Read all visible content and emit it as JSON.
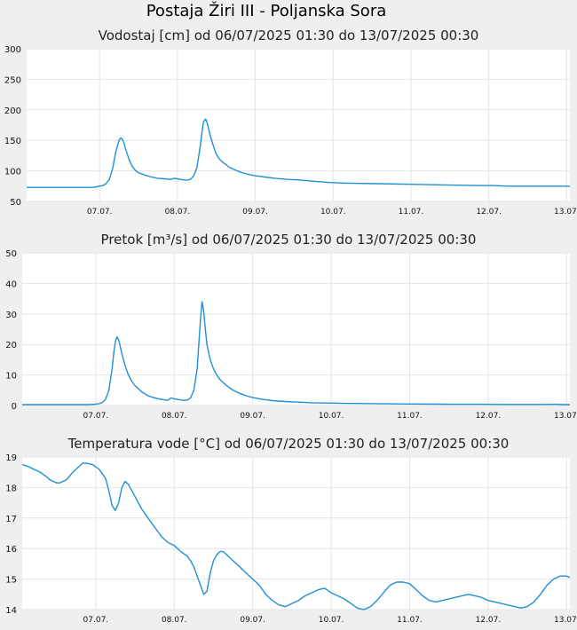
{
  "page": {
    "title": "Postaja Žiri III - Poljanska Sora"
  },
  "style": {
    "line_color": "#1f8fd6",
    "plot_bg": "#ffffff",
    "grid_color": "#e4e4e4",
    "page_bg": "#efefef"
  },
  "chart_data": [
    {
      "type": "line",
      "title": "Vodostaj [cm] od 06/07/2025 01:30 do 13/07/2025 00:30",
      "xlim": [
        1.5,
        169.0
      ],
      "ylim": [
        50,
        300
      ],
      "yticks": [
        "50",
        "100",
        "150",
        "200",
        "250",
        "300"
      ],
      "ytick_values": [
        50,
        100,
        150,
        200,
        250,
        300
      ],
      "xticks": [
        "07.07.",
        "08.07.",
        "09.07.",
        "10.07.",
        "11.07.",
        "12.07.",
        "13.07."
      ],
      "xtick_hours": [
        24,
        48,
        72,
        96,
        120,
        144,
        168
      ],
      "grid": true,
      "series": [
        {
          "x": [
            1.5,
            3,
            6,
            10,
            14,
            18,
            20,
            22,
            23,
            24,
            25,
            26,
            27,
            28,
            29,
            30,
            30.5,
            31,
            31.5,
            32,
            33,
            34,
            35,
            36,
            38,
            40,
            42,
            44,
            46,
            47,
            48,
            49,
            50,
            51,
            52,
            53,
            54,
            55,
            56,
            56.7,
            57.3,
            58,
            59,
            60,
            61,
            62,
            64,
            66,
            68,
            70,
            72,
            75,
            78,
            82,
            86,
            90,
            95,
            100,
            110,
            120,
            130,
            140,
            145,
            150,
            155,
            160,
            165,
            169
          ],
          "y": [
            73,
            73,
            73,
            73,
            73,
            73,
            73,
            73,
            74,
            75,
            76,
            79,
            86,
            103,
            132,
            150,
            154,
            152,
            146,
            136,
            120,
            108,
            101,
            97,
            93,
            90,
            88,
            87,
            86,
            88,
            87,
            86,
            85,
            85,
            86,
            92,
            105,
            140,
            180,
            185,
            176,
            160,
            142,
            127,
            119,
            114,
            106,
            101,
            97,
            94,
            92,
            90,
            88,
            86,
            85,
            83,
            81,
            80,
            79,
            78,
            77,
            76,
            76,
            75,
            75,
            75,
            75,
            75
          ]
        }
      ]
    },
    {
      "type": "line",
      "title": "Pretok [m³/s] od 06/07/2025 01:30 do 13/07/2025 00:30",
      "xlim": [
        1.5,
        169.0
      ],
      "ylim": [
        0,
        50
      ],
      "yticks": [
        "0",
        "10",
        "20",
        "30",
        "40",
        "50"
      ],
      "ytick_values": [
        0,
        10,
        20,
        30,
        40,
        50
      ],
      "xticks": [
        "07.07.",
        "08.07.",
        "09.07.",
        "10.07.",
        "11.07.",
        "12.07.",
        "13.07."
      ],
      "xtick_hours": [
        24,
        48,
        72,
        96,
        120,
        144,
        168
      ],
      "grid": true,
      "series": [
        {
          "x": [
            1.5,
            5,
            10,
            15,
            20,
            22,
            24,
            25,
            26,
            27,
            28,
            29,
            29.5,
            30,
            30.5,
            31,
            32,
            33,
            34,
            35,
            36,
            38,
            40,
            42,
            44,
            46,
            47,
            48,
            49,
            50,
            51,
            52,
            53,
            54,
            55,
            56,
            56.5,
            57,
            57.5,
            58,
            59,
            60,
            61,
            62,
            64,
            66,
            68,
            70,
            72,
            75,
            78,
            82,
            86,
            90,
            95,
            100,
            110,
            120,
            130,
            140,
            150,
            160,
            165,
            167,
            169
          ],
          "y": [
            0.3,
            0.3,
            0.3,
            0.3,
            0.3,
            0.3,
            0.4,
            0.6,
            1.0,
            2.0,
            5.0,
            12.0,
            17.0,
            21.0,
            22.5,
            21.5,
            17.0,
            13.0,
            10.0,
            8.0,
            6.5,
            4.5,
            3.2,
            2.5,
            2.0,
            1.7,
            2.5,
            2.2,
            2.0,
            1.8,
            1.7,
            1.8,
            2.5,
            5.0,
            12.0,
            28.0,
            34.0,
            31.0,
            25.0,
            20.0,
            15.0,
            12.0,
            10.0,
            8.5,
            6.5,
            5.0,
            4.0,
            3.2,
            2.6,
            2.0,
            1.6,
            1.3,
            1.1,
            0.9,
            0.8,
            0.7,
            0.6,
            0.5,
            0.45,
            0.4,
            0.35,
            0.35,
            0.4,
            0.3,
            0.3
          ]
        }
      ]
    },
    {
      "type": "line",
      "title": "Temperatura vode [°C] od 06/07/2025 01:30 do 13/07/2025 00:30",
      "xlim": [
        1.5,
        169.0
      ],
      "ylim": [
        14,
        19
      ],
      "yticks": [
        "14",
        "15",
        "16",
        "17",
        "18",
        "19"
      ],
      "ytick_values": [
        14,
        15,
        16,
        17,
        18,
        19
      ],
      "xticks": [
        "07.07.",
        "08.07.",
        "09.07.",
        "10.07.",
        "11.07.",
        "12.07.",
        "13.07."
      ],
      "xtick_hours": [
        24,
        48,
        72,
        96,
        120,
        144,
        168
      ],
      "grid": true,
      "series": [
        {
          "x": [
            1.5,
            3,
            5,
            7,
            9,
            10,
            11,
            12,
            13,
            15,
            17,
            19,
            20,
            21,
            23,
            25,
            27,
            28,
            29,
            30,
            31,
            32,
            33,
            34,
            35,
            36,
            37,
            38,
            40,
            42,
            44,
            46,
            48,
            50,
            52,
            53,
            54,
            55,
            56,
            57,
            58,
            59,
            60,
            61,
            62,
            63,
            64,
            65,
            66,
            68,
            70,
            72,
            74,
            76,
            78,
            80,
            82,
            84,
            86,
            88,
            90,
            92,
            94,
            96,
            98,
            100,
            102,
            104,
            106,
            108,
            110,
            112,
            114,
            116,
            118,
            120,
            122,
            124,
            126,
            128,
            130,
            134,
            138,
            142,
            144,
            146,
            148,
            150,
            152,
            154,
            156,
            158,
            160,
            162,
            164,
            166,
            168,
            169
          ],
          "y": [
            18.75,
            18.7,
            18.6,
            18.5,
            18.35,
            18.25,
            18.2,
            18.15,
            18.15,
            18.25,
            18.5,
            18.7,
            18.8,
            18.8,
            18.75,
            18.6,
            18.3,
            17.9,
            17.4,
            17.25,
            17.5,
            18.0,
            18.2,
            18.1,
            17.9,
            17.7,
            17.5,
            17.3,
            17.0,
            16.7,
            16.4,
            16.2,
            16.1,
            15.9,
            15.75,
            15.6,
            15.4,
            15.1,
            14.8,
            14.5,
            14.6,
            15.2,
            15.6,
            15.8,
            15.9,
            15.9,
            15.8,
            15.7,
            15.6,
            15.4,
            15.2,
            15.0,
            14.8,
            14.5,
            14.3,
            14.15,
            14.1,
            14.2,
            14.3,
            14.45,
            14.55,
            14.65,
            14.7,
            14.55,
            14.45,
            14.35,
            14.2,
            14.05,
            14.0,
            14.1,
            14.3,
            14.55,
            14.8,
            14.9,
            14.9,
            14.85,
            14.65,
            14.45,
            14.3,
            14.25,
            14.3,
            14.4,
            14.5,
            14.4,
            14.3,
            14.25,
            14.2,
            14.15,
            14.1,
            14.05,
            14.1,
            14.25,
            14.5,
            14.8,
            15.0,
            15.1,
            15.1,
            15.05
          ]
        }
      ]
    }
  ]
}
